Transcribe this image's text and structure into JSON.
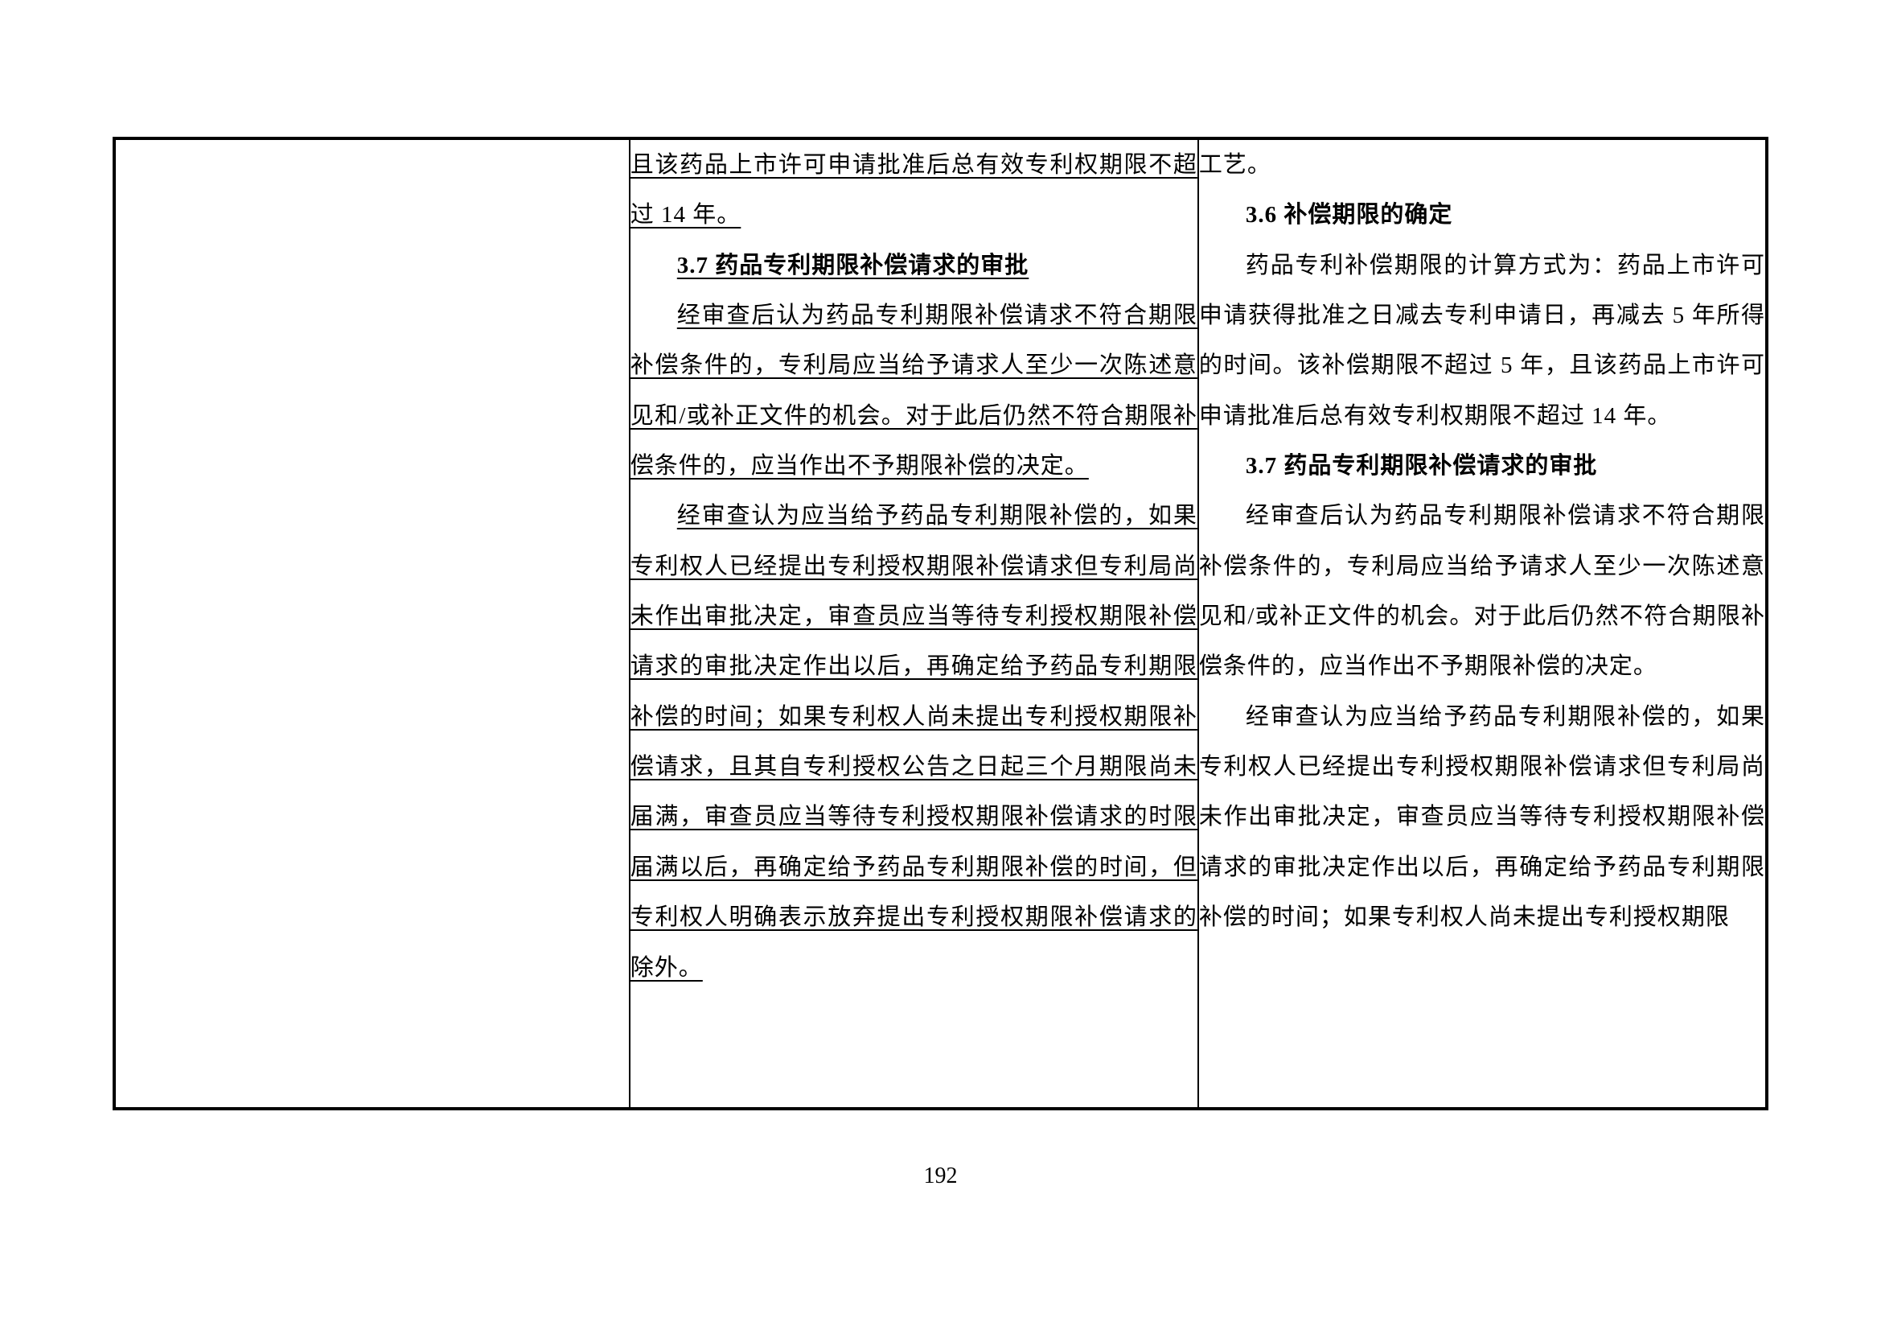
{
  "middle_col": {
    "p1": "且该药品上市许可申请批准后总有效专利权期限不超过 14 年。",
    "h37": "3.7 药品专利期限补偿请求的审批",
    "p2": "经审查后认为药品专利期限补偿请求不符合期限补偿条件的，专利局应当给予请求人至少一次陈述意见和/或补正文件的机会。对于此后仍然不符合期限补偿条件的，应当作出不予期限补偿的决定。",
    "p3": "经审查认为应当给予药品专利期限补偿的，如果专利权人已经提出专利授权期限补偿请求但专利局尚未作出审批决定，审查员应当等待专利授权期限补偿请求的审批决定作出以后，再确定给予药品专利期限补偿的时间；如果专利权人尚未提出专利授权期限补偿请求，且其自专利授权公告之日起三个月期限尚未届满，审查员应当等待专利授权期限补偿请求的时限届满以后，再确定给予药品专利期限补偿的时间，但专利权人明确表示放弃提出专利授权期限补偿请求的除外。"
  },
  "right_col": {
    "p1": "工艺。",
    "h36": "3.6 补偿期限的确定",
    "p2": "药品专利补偿期限的计算方式为：药品上市许可申请获得批准之日减去专利申请日，再减去 5 年所得的时间。该补偿期限不超过 5 年，且该药品上市许可申请批准后总有效专利权期限不超过 14 年。",
    "h37": "3.7 药品专利期限补偿请求的审批",
    "p3": "经审查后认为药品专利期限补偿请求不符合期限补偿条件的，专利局应当给予请求人至少一次陈述意见和/或补正文件的机会。对于此后仍然不符合期限补偿条件的，应当作出不予期限补偿的决定。",
    "p4": "经审查认为应当给予药品专利期限补偿的，如果专利权人已经提出专利授权期限补偿请求但专利局尚未作出审批决定，审查员应当等待专利授权期限补偿请求的审批决定作出以后，再确定给予药品专利期限补偿的时间；如果专利权人尚未提出专利授权期限"
  },
  "page_number": "192",
  "colors": {
    "text": "#000000",
    "border": "#000000",
    "background": "#ffffff"
  },
  "typography": {
    "body_fontsize": 29,
    "line_height": 2.15,
    "font_family": "SimSun"
  }
}
